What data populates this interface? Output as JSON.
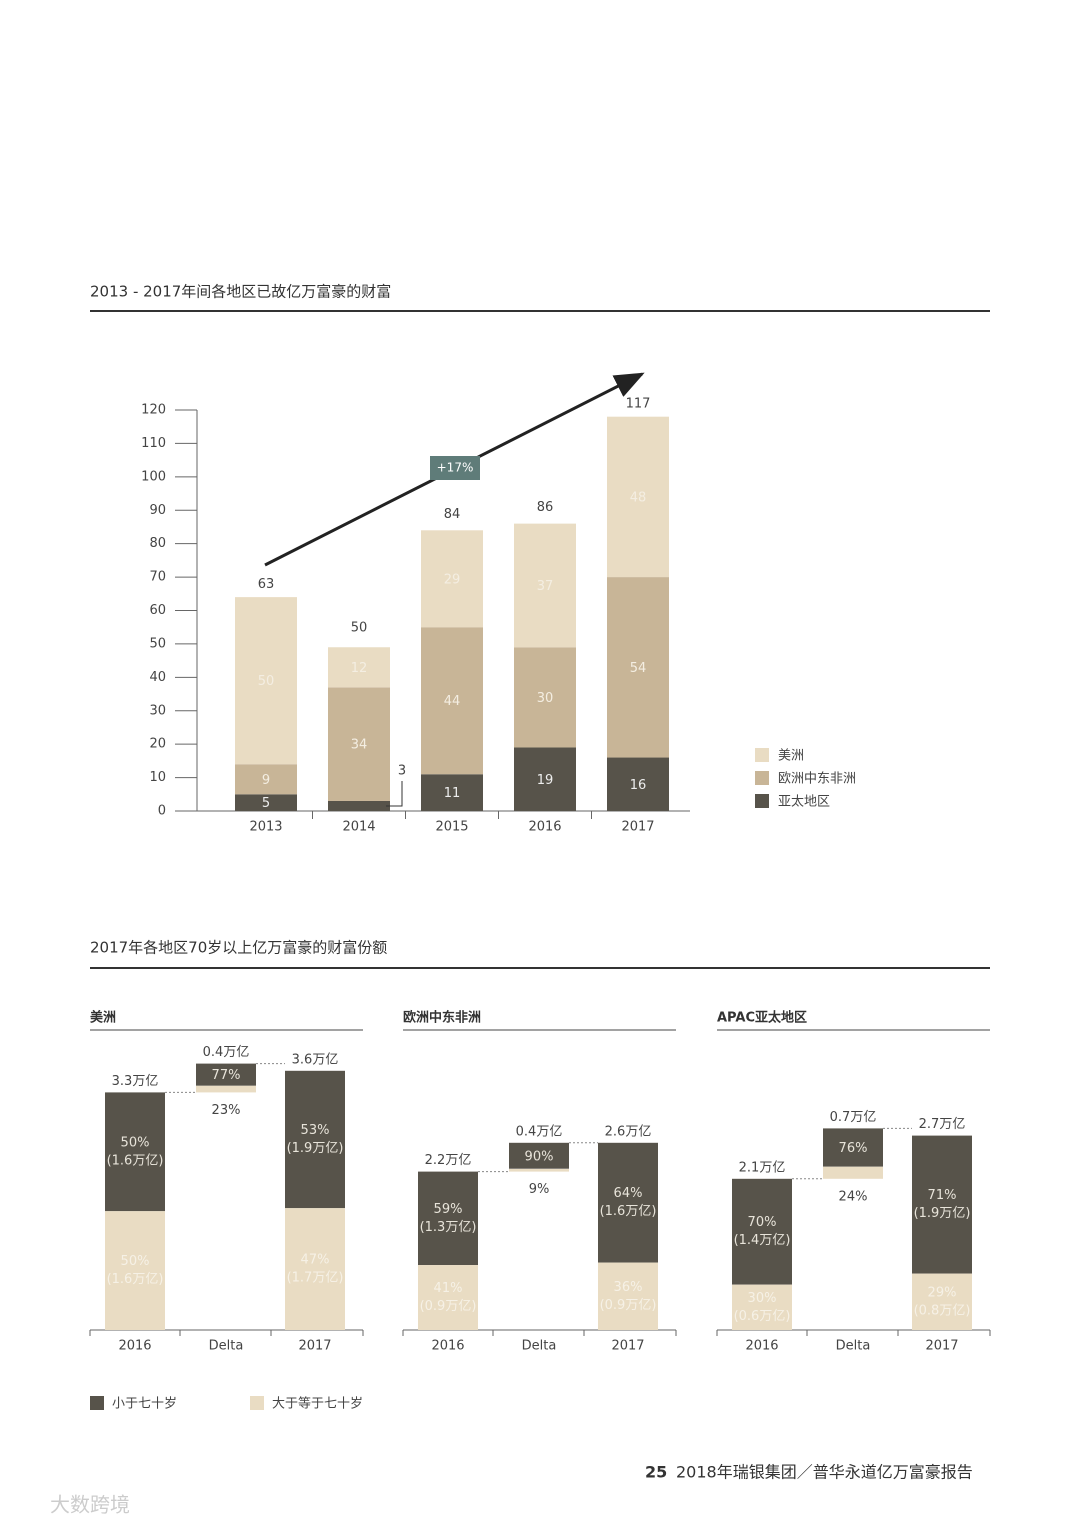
{
  "chart_data": [
    {
      "type": "stacked_bar",
      "title": "2013 - 2017年间各地区已故亿万富豪的财富",
      "categories": [
        "2013",
        "2014",
        "2015",
        "2016",
        "2017"
      ],
      "series": [
        {
          "name": "亚太地区",
          "color": "#57534a",
          "values": [
            5,
            3,
            11,
            19,
            16
          ]
        },
        {
          "name": "欧洲中东非洲",
          "color": "#c8b597",
          "values": [
            9,
            34,
            44,
            30,
            54
          ]
        },
        {
          "name": "美洲",
          "color": "#e9dcc3",
          "values": [
            50,
            12,
            29,
            37,
            48
          ]
        }
      ],
      "totals": [
        63,
        50,
        84,
        86,
        117
      ],
      "ylim": [
        0,
        120
      ],
      "yticks": [
        0,
        10,
        20,
        30,
        40,
        50,
        60,
        70,
        80,
        90,
        100,
        110,
        120
      ],
      "annotation": "+17%"
    },
    {
      "type": "waterfall",
      "title": "2017年各地区70岁以上亿万富豪的财富份额",
      "categories": [
        "2016",
        "Delta",
        "2017"
      ],
      "series": [
        {
          "name": "小于七十岁",
          "color": "#57534a"
        },
        {
          "name": "大于等于七十岁",
          "color": "#e9dcc3"
        }
      ],
      "panels": [
        {
          "title": "美洲",
          "totals": [
            3.3,
            0.4,
            3.6
          ],
          "total_labels": [
            "3.3万亿",
            "0.4万亿",
            "3.6万亿"
          ],
          "shares": [
            [
              50,
              77,
              53
            ],
            [
              50,
              23,
              47
            ]
          ],
          "share_labels": [
            [
              "50%",
              "77%",
              "53%"
            ],
            [
              "50%",
              "23%",
              "47%"
            ]
          ],
          "amounts": [
            [
              1.6,
              null,
              1.9
            ],
            [
              1.6,
              null,
              1.7
            ]
          ],
          "amount_labels": [
            [
              "(1.6万亿)",
              null,
              "(1.9万亿)"
            ],
            [
              "(1.6万亿)",
              null,
              "(1.7万亿)"
            ]
          ]
        },
        {
          "title": "欧洲中东非洲",
          "totals": [
            2.2,
            0.4,
            2.6
          ],
          "total_labels": [
            "2.2万亿",
            "0.4万亿",
            "2.6万亿"
          ],
          "shares": [
            [
              59,
              90,
              64
            ],
            [
              41,
              9,
              36
            ]
          ],
          "share_labels": [
            [
              "59%",
              "90%",
              "64%"
            ],
            [
              "41%",
              "9%",
              "36%"
            ]
          ],
          "amounts": [
            [
              1.3,
              null,
              1.6
            ],
            [
              0.9,
              null,
              0.9
            ]
          ],
          "amount_labels": [
            [
              "(1.3万亿)",
              null,
              "(1.6万亿)"
            ],
            [
              "(0.9万亿)",
              null,
              "(0.9万亿)"
            ]
          ]
        },
        {
          "title": "APAC亚太地区",
          "totals": [
            2.1,
            0.7,
            2.7
          ],
          "total_labels": [
            "2.1万亿",
            "0.7万亿",
            "2.7万亿"
          ],
          "shares": [
            [
              70,
              76,
              71
            ],
            [
              30,
              24,
              29
            ]
          ],
          "share_labels": [
            [
              "70%",
              "76%",
              "71%"
            ],
            [
              "30%",
              "24%",
              "29%"
            ]
          ],
          "amounts": [
            [
              1.4,
              null,
              1.9
            ],
            [
              0.6,
              null,
              0.8
            ]
          ],
          "amount_labels": [
            [
              "(1.4万亿)",
              null,
              "(1.9万亿)"
            ],
            [
              "(0.6万亿)",
              null,
              "(0.8万亿)"
            ]
          ]
        }
      ]
    }
  ],
  "footer": {
    "page": "25",
    "text": "2018年瑞银集团／普华永道亿万富豪报告"
  },
  "watermark": "大数跨境"
}
